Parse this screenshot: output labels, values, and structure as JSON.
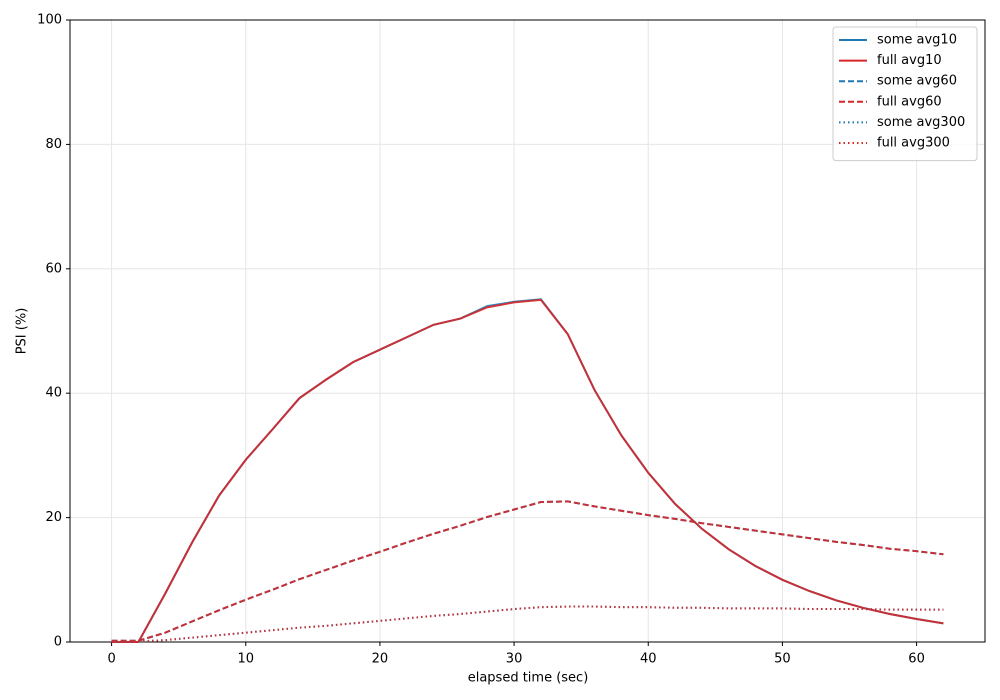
{
  "chart_data": {
    "type": "line",
    "xlabel": "elapsed time (sec)",
    "ylabel": "PSI (%)",
    "x": [
      0,
      2,
      4,
      6,
      8,
      10,
      12,
      14,
      16,
      18,
      20,
      22,
      24,
      26,
      28,
      30,
      32,
      34,
      36,
      38,
      40,
      42,
      44,
      46,
      48,
      50,
      52,
      54,
      56,
      58,
      60,
      62
    ],
    "series": [
      {
        "name": "some avg10",
        "color": "#1f77b4",
        "style": "solid",
        "values": [
          0,
          0,
          7.8,
          16,
          23.5,
          29.3,
          34.2,
          39.2,
          42.2,
          45,
          47,
          49,
          51,
          52,
          54,
          54.7,
          55.1,
          49.5,
          40.5,
          33.2,
          27.2,
          22.2,
          18.2,
          14.9,
          12.2,
          10,
          8.2,
          6.7,
          5.5,
          4.5,
          3.7,
          3.0
        ]
      },
      {
        "name": "full avg10",
        "color": "#d62728",
        "style": "solid",
        "values": [
          0,
          0,
          7.8,
          16,
          23.5,
          29.3,
          34.2,
          39.2,
          42.2,
          45,
          47,
          49,
          51,
          52,
          53.8,
          54.6,
          55,
          49.5,
          40.5,
          33.2,
          27.2,
          22.2,
          18.2,
          14.9,
          12.2,
          10,
          8.2,
          6.7,
          5.5,
          4.5,
          3.7,
          3.0
        ]
      },
      {
        "name": "some avg60",
        "color": "#1f77b4",
        "style": "dashed",
        "values": [
          0.2,
          0.2,
          1.5,
          3.3,
          5.1,
          6.8,
          8.4,
          10.1,
          11.6,
          13.1,
          14.5,
          16,
          17.4,
          18.7,
          20.1,
          21.3,
          22.5,
          22.6,
          21.8,
          21.1,
          20.4,
          19.8,
          19.1,
          18.5,
          17.9,
          17.3,
          16.7,
          16.1,
          15.6,
          15.0,
          14.6,
          14.1
        ]
      },
      {
        "name": "full avg60",
        "color": "#d62728",
        "style": "dashed",
        "values": [
          0.2,
          0.2,
          1.5,
          3.3,
          5.1,
          6.8,
          8.4,
          10.1,
          11.6,
          13.1,
          14.5,
          16,
          17.4,
          18.7,
          20.1,
          21.3,
          22.5,
          22.6,
          21.8,
          21.1,
          20.4,
          19.8,
          19.1,
          18.5,
          17.9,
          17.3,
          16.7,
          16.1,
          15.6,
          15.0,
          14.6,
          14.1
        ]
      },
      {
        "name": "some avg300",
        "color": "#1f77b4",
        "style": "dotted",
        "values": [
          0,
          0.1,
          0.3,
          0.7,
          1.1,
          1.5,
          1.9,
          2.3,
          2.6,
          3.0,
          3.4,
          3.8,
          4.2,
          4.5,
          4.9,
          5.3,
          5.6,
          5.7,
          5.7,
          5.6,
          5.6,
          5.5,
          5.5,
          5.4,
          5.4,
          5.4,
          5.3,
          5.3,
          5.3,
          5.2,
          5.2,
          5.2
        ]
      },
      {
        "name": "full avg300",
        "color": "#d62728",
        "style": "dotted",
        "values": [
          0,
          0.1,
          0.3,
          0.7,
          1.1,
          1.5,
          1.9,
          2.3,
          2.6,
          3.0,
          3.4,
          3.8,
          4.2,
          4.5,
          4.9,
          5.3,
          5.6,
          5.7,
          5.7,
          5.6,
          5.6,
          5.5,
          5.5,
          5.4,
          5.4,
          5.4,
          5.3,
          5.3,
          5.3,
          5.2,
          5.2,
          5.2
        ]
      }
    ],
    "xlim": [
      -3.1,
      65.1
    ],
    "xticks": [
      0,
      10,
      20,
      30,
      40,
      50,
      60
    ],
    "ylim": [
      0,
      100
    ],
    "yticks": [
      0,
      20,
      40,
      60,
      80,
      100
    ],
    "grid": true,
    "legend": "upper right"
  }
}
